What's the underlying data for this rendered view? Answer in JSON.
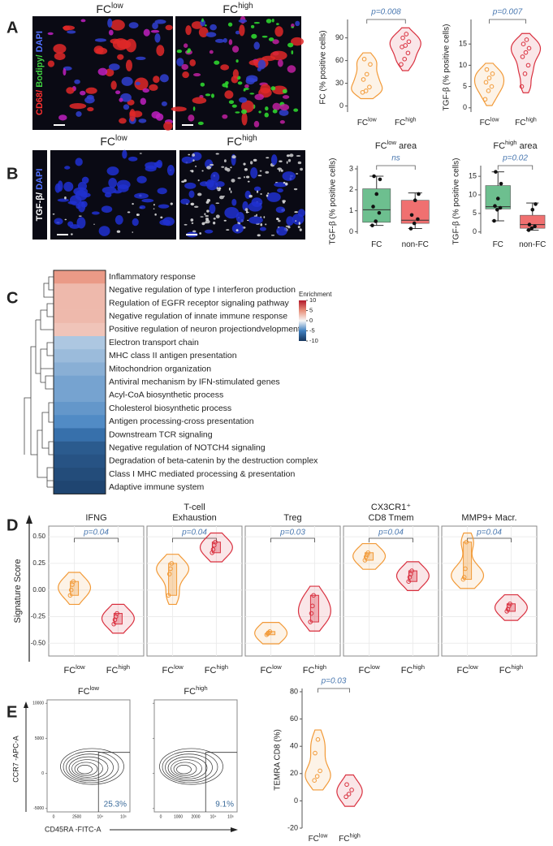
{
  "figure": {
    "A": {
      "label": "A",
      "stain": [
        {
          "text": "CD68/",
          "color": "#ff3030"
        },
        {
          "text": " Bodipy/",
          "color": "#40d040"
        },
        {
          "text": " DAPI",
          "color": "#5070ff"
        }
      ],
      "image_titles": [
        {
          "text": "FC",
          "sup": "low"
        },
        {
          "text": "FC",
          "sup": "high"
        }
      ],
      "plots": [
        {
          "ylabel": "FC (% positive cells)",
          "ylim": [
            -8,
            110
          ],
          "yticks": [
            0,
            30,
            60,
            90
          ],
          "p": "p=0.008",
          "groups": [
            {
              "text": "FC",
              "sup": "low",
              "color": "#f29a38",
              "points": [
                18,
                20,
                25,
                35,
                42,
                55,
                62
              ]
            },
            {
              "text": "FC",
              "sup": "high",
              "color": "#d9303f",
              "points": [
                55,
                62,
                70,
                78,
                80,
                85,
                90,
                95
              ]
            }
          ]
        },
        {
          "ylabel": "TGF-β (% positive cells)",
          "ylim": [
            -1,
            20
          ],
          "yticks": [
            0,
            5,
            10,
            15
          ],
          "p": "p=0.007",
          "groups": [
            {
              "text": "FC",
              "sup": "low",
              "color": "#f29a38",
              "points": [
                2,
                4,
                5,
                6,
                7,
                8,
                9
              ]
            },
            {
              "text": "FC",
              "sup": "high",
              "color": "#d9303f",
              "points": [
                5,
                8,
                10,
                12,
                13,
                14,
                15,
                16
              ]
            }
          ]
        }
      ]
    },
    "B": {
      "label": "B",
      "stain": [
        {
          "text": "TGF-β/",
          "color": "#ffffff"
        },
        {
          "text": " DAPI",
          "color": "#5070ff"
        }
      ],
      "image_titles": [
        {
          "text": "FC",
          "sup": "low"
        },
        {
          "text": "FC",
          "sup": "high"
        }
      ],
      "plots": [
        {
          "title": {
            "text": "FC",
            "sup": "low",
            "rest": " area"
          },
          "ylabel": "TGF-β (% positive cells)",
          "ylim": [
            -0.1,
            3
          ],
          "yticks": [
            0,
            1,
            2,
            3
          ],
          "p": "ns",
          "groups": [
            {
              "text": "FC",
              "color": "#6dbf8f",
              "points": [
                0.3,
                0.5,
                0.9,
                1.2,
                1.8,
                2.5,
                2.65
              ],
              "box": {
                "q1": 0.45,
                "median": 1.05,
                "q3": 2.05,
                "whisker_low": 0.3,
                "whisker_high": 2.65
              }
            },
            {
              "text": "non-FC",
              "color": "#f07070",
              "points": [
                0.15,
                0.4,
                0.6,
                0.8,
                1.5,
                1.8
              ],
              "box": {
                "q1": 0.4,
                "median": 0.55,
                "q3": 1.5,
                "whisker_low": 0.15,
                "whisker_high": 1.85
              }
            }
          ]
        },
        {
          "title": {
            "text": "FC",
            "sup": "high",
            "rest": " area"
          },
          "ylabel": "TGF-β (% positive cells)",
          "ylim": [
            -0.5,
            17
          ],
          "yticks": [
            0,
            5,
            10,
            15
          ],
          "p": "p=0.02",
          "groups": [
            {
              "text": "FC",
              "color": "#6dbf8f",
              "points": [
                3,
                6,
                6.5,
                7,
                9,
                13,
                16.2
              ],
              "box": {
                "q1": 6.2,
                "median": 6.8,
                "q3": 12.5,
                "whisker_low": 3,
                "whisker_high": 16.2
              }
            },
            {
              "text": "non-FC",
              "color": "#f07070",
              "points": [
                0.5,
                1,
                1.5,
                2,
                6,
                7.5
              ],
              "box": {
                "q1": 1,
                "median": 2,
                "q3": 4.5,
                "whisker_low": 0.5,
                "whisker_high": 7.8
              }
            }
          ]
        }
      ]
    },
    "C": {
      "label": "C",
      "legend_title": "Enrichment",
      "clim": [
        -10,
        10
      ],
      "ticks": [
        10,
        5,
        0,
        -5,
        -10
      ],
      "terms": [
        {
          "name": "Inflammatory response",
          "value": 4.5
        },
        {
          "name": "Negative regulation of type I interferon production",
          "value": 3
        },
        {
          "name": "Regulation of EGFR receptor signaling pathway",
          "value": 3
        },
        {
          "name": "Negative regulation of innate immune response",
          "value": 3
        },
        {
          "name": "Positive regulation of neuron projectiondvelopment",
          "value": 2.5
        },
        {
          "name": "Electron transport chain",
          "value": -2
        },
        {
          "name": "MHC class II antigen presentation",
          "value": -2.5
        },
        {
          "name": "Mitochondrion organization",
          "value": -3
        },
        {
          "name": "Antiviral mechanism by IFN-stimulated genes",
          "value": -3.5
        },
        {
          "name": "Acyl-CoA biosynthetic process",
          "value": -3.5
        },
        {
          "name": "Cholesterol biosynthetic process",
          "value": -4
        },
        {
          "name": "Antigen processing-cross presentation",
          "value": -4.5
        },
        {
          "name": "Downstream TCR signaling",
          "value": -6
        },
        {
          "name": "Negative regulation of NOTCH4 signaling",
          "value": -7.5
        },
        {
          "name": "Degradation of beta-catenin by the destruction complex",
          "value": -8
        },
        {
          "name": "Class I MHC mediated processing & presentation",
          "value": -8.5
        },
        {
          "name": "Adaptive immune system",
          "value": -9
        }
      ]
    },
    "D": {
      "label": "D",
      "ylabel": "Signature Score",
      "ylim": [
        -0.62,
        0.6
      ],
      "yticks": [
        {
          "value": 0.5,
          "label": "0.50"
        },
        {
          "value": 0.25,
          "label": "0.25"
        },
        {
          "value": 0,
          "label": "0.00"
        },
        {
          "value": -0.25,
          "label": "-0.25"
        },
        {
          "value": -0.5,
          "label": "-0.50"
        }
      ],
      "groups": [
        {
          "text": "FC",
          "sup": "low",
          "color": "#f29a38"
        },
        {
          "text": "FC",
          "sup": "high",
          "color": "#d9303f"
        }
      ],
      "facets": [
        {
          "title": [
            "IFNG"
          ],
          "p": "p=0.04",
          "values": [
            [
              -0.05,
              0.0,
              0.05,
              0.08
            ],
            [
              -0.32,
              -0.28,
              -0.25,
              -0.22
            ]
          ]
        },
        {
          "title": [
            "T-cell",
            "Exhaustion"
          ],
          "p": "p=0.04",
          "values": [
            [
              -0.05,
              0.15,
              0.2,
              0.25
            ],
            [
              0.35,
              0.38,
              0.42,
              0.45
            ]
          ]
        },
        {
          "title": [
            "Treg"
          ],
          "p": "p=0.03",
          "values": [
            [
              -0.42,
              -0.41,
              -0.4,
              -0.39
            ],
            [
              -0.3,
              -0.22,
              -0.15,
              -0.05
            ]
          ]
        },
        {
          "title": [
            "CX3CR1⁺",
            "CD8 Tmem"
          ],
          "p": "p=0.04",
          "values": [
            [
              0.28,
              0.31,
              0.33,
              0.35
            ],
            [
              0.08,
              0.12,
              0.15,
              0.18
            ]
          ]
        },
        {
          "title": [
            "MMP9+ Macr."
          ],
          "p": "p=0.04",
          "values": [
            [
              0.1,
              0.12,
              0.2,
              0.45
            ],
            [
              -0.2,
              -0.18,
              -0.15,
              -0.13
            ]
          ]
        }
      ]
    },
    "E": {
      "label": "E",
      "flow": {
        "titles": [
          {
            "text": "FC",
            "sup": "low"
          },
          {
            "text": "FC",
            "sup": "high"
          }
        ],
        "ylabel": "CCR7 -APC-A",
        "xlabel": "CD45RA -FITC-A",
        "ylim": [
          -5500,
          10500
        ],
        "yticks": [
          10000,
          5000,
          0,
          -5000
        ],
        "percent": [
          "25.3%",
          "9.1%"
        ],
        "xtick_labels": [
          [
            "0",
            "2500",
            "10⁴",
            "10⁵"
          ],
          [
            "0",
            "1000",
            "2000",
            "10⁴",
            "10⁵"
          ]
        ]
      },
      "plot": {
        "ylabel": "TEMRA CD8 (%)",
        "ylim": [
          -20,
          80
        ],
        "yticks": [
          -20,
          0,
          20,
          40,
          60,
          80
        ],
        "p": "p=0.03",
        "groups": [
          {
            "text": "FC",
            "sup": "low",
            "color": "#f29a38",
            "points": [
              15,
              18,
              22,
              35,
              45
            ]
          },
          {
            "text": "FC",
            "sup": "high",
            "color": "#d9303f",
            "points": [
              3,
              5,
              8,
              12
            ]
          }
        ]
      }
    }
  }
}
